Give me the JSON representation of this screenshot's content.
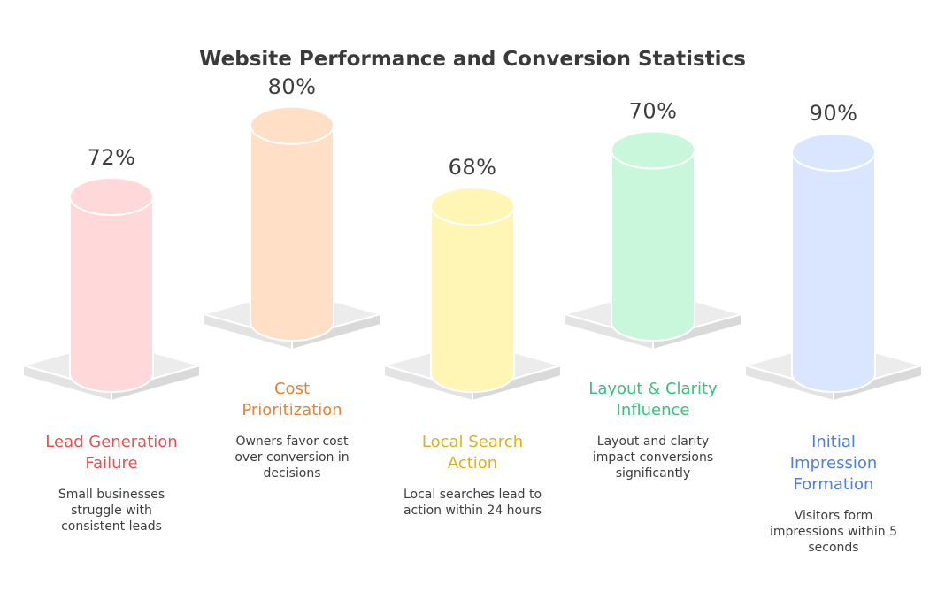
{
  "chart_data": {
    "type": "bar",
    "title": "Website Performance and Conversion Statistics",
    "unit": "%",
    "ylim": [
      0,
      100
    ],
    "categories": [
      "Lead Generation Failure",
      "Cost Prioritization",
      "Local Search Action",
      "Layout & Clarity Influence",
      "Initial Impression Formation"
    ],
    "values": [
      72,
      80,
      68,
      70,
      90
    ],
    "items": [
      {
        "value": 72,
        "value_label": "72%",
        "label_lines": [
          "Lead Generation",
          "Failure"
        ],
        "desc_lines": [
          "Small businesses",
          "struggle with",
          "consistent leads"
        ],
        "fill": "#ffd9d9",
        "text_color": "#e05454"
      },
      {
        "value": 80,
        "value_label": "80%",
        "label_lines": [
          "Cost",
          "Prioritization"
        ],
        "desc_lines": [
          "Owners favor cost",
          "over conversion in",
          "decisions"
        ],
        "fill": "#ffe0c6",
        "text_color": "#e0853a"
      },
      {
        "value": 68,
        "value_label": "68%",
        "label_lines": [
          "Local Search",
          "Action"
        ],
        "desc_lines": [
          "Local searches lead to",
          "action within 24 hours"
        ],
        "fill": "#fff5b5",
        "text_color": "#d9b21c"
      },
      {
        "value": 70,
        "value_label": "70%",
        "label_lines": [
          "Layout & Clarity",
          "Influence"
        ],
        "desc_lines": [
          "Layout and clarity",
          "impact conversions",
          "significantly"
        ],
        "fill": "#c8f7dc",
        "text_color": "#3cc07c"
      },
      {
        "value": 90,
        "value_label": "90%",
        "label_lines": [
          "Initial",
          "Impression",
          "Formation"
        ],
        "desc_lines": [
          "Visitors form",
          "impressions within 5",
          "seconds"
        ],
        "fill": "#dae6ff",
        "text_color": "#4f7fde"
      }
    ]
  }
}
